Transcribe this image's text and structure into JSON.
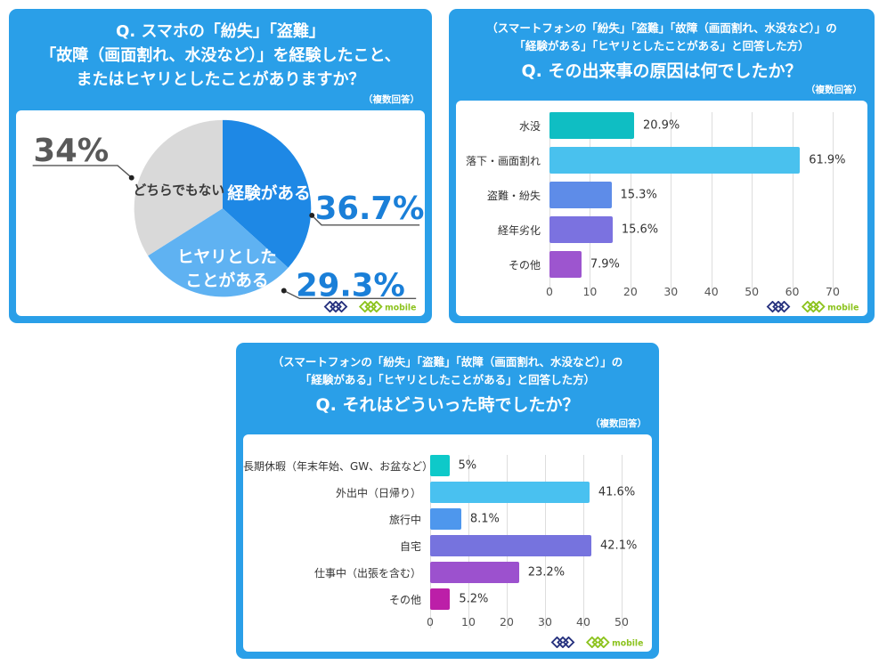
{
  "brand": {
    "mobile_text": "mobile",
    "navy": "#26317E",
    "green": "#8CC31E"
  },
  "panels": [
    {
      "title_line1": "Q. スマホの「紛失」「盗難」",
      "title_line2": "「故障（画面割れ、水没など）」を経験したこと、",
      "title_line3": "またはヒヤリとしたことがありますか？",
      "note": "（複数回答）",
      "pie": {
        "callout_blue": "#1A7FD8",
        "callout_gray": "#595959",
        "slices": [
          {
            "label": "経験がある",
            "value": 36.7,
            "display": "36.7%",
            "color": "#1E88E5"
          },
          {
            "label": "ヒヤリとしたことがある",
            "label_line1": "ヒヤリとした",
            "label_line2": "ことがある",
            "value": 29.3,
            "display": "29.3%",
            "color": "#5FB2F2"
          },
          {
            "label": "どちらでもない",
            "value": 34,
            "display": "34%",
            "color": "#D9D9D9"
          }
        ]
      }
    },
    {
      "subtitle_line1": "（スマートフォンの「紛失」「盗難」「故障（画面割れ、水没など）」の",
      "subtitle_line2": "「経験がある」「ヒヤリとしたことがある」と回答した方）",
      "question": "Q. その出来事の原因は何でしたか？",
      "note": "（複数回答）",
      "chart": {
        "axis_max": 70,
        "ticks": [
          0,
          10,
          20,
          30,
          40,
          50,
          60,
          70
        ],
        "bars": [
          {
            "label": "水没",
            "value": 20.9,
            "display": "20.9%",
            "color": "#0FBEC3"
          },
          {
            "label": "落下・画面割れ",
            "value": 61.9,
            "display": "61.9%",
            "color": "#49C1EE"
          },
          {
            "label": "盗難・紛失",
            "value": 15.3,
            "display": "15.3%",
            "color": "#5E8CE8"
          },
          {
            "label": "経年劣化",
            "value": 15.6,
            "display": "15.6%",
            "color": "#7B72E0"
          },
          {
            "label": "その他",
            "value": 7.9,
            "display": "7.9%",
            "color": "#9D55CF"
          }
        ]
      }
    },
    {
      "subtitle_line1": "（スマートフォンの「紛失」「盗難」「故障（画面割れ、水没など）」の",
      "subtitle_line2": "「経験がある」「ヒヤリとしたことがある」と回答した方）",
      "question": "Q. それはどういった時でしたか？",
      "note": "（複数回答）",
      "chart": {
        "axis_max": 50,
        "ticks": [
          0,
          10,
          20,
          30,
          40,
          50
        ],
        "bars": [
          {
            "label": "長期休暇（年末年始、GW、お盆など）",
            "value": 5,
            "display": "5%",
            "color": "#0EC9C9"
          },
          {
            "label": "外出中（日帰り）",
            "value": 41.6,
            "display": "41.6%",
            "color": "#49C1F0"
          },
          {
            "label": "旅行中",
            "value": 8.1,
            "display": "8.1%",
            "color": "#4E97ED"
          },
          {
            "label": "自宅",
            "value": 42.1,
            "display": "42.1%",
            "color": "#7673DE"
          },
          {
            "label": "仕事中（出張を含む）",
            "value": 23.2,
            "display": "23.2%",
            "color": "#9C51CE"
          },
          {
            "label": "その他",
            "value": 5.2,
            "display": "5.2%",
            "color": "#BC1FA8"
          }
        ]
      }
    }
  ],
  "chart_data": [
    {
      "type": "pie",
      "title": "Q. スマホの「紛失」「盗難」「故障（画面割れ、水没など）」を経験したこと、またはヒヤリとしたことがありますか？",
      "note": "（複数回答）",
      "labels": [
        "経験がある",
        "ヒヤリとしたことがある",
        "どちらでもない"
      ],
      "values": [
        36.7,
        29.3,
        34
      ],
      "value_labels": [
        "36.7%",
        "29.3%",
        "34%"
      ],
      "colors": [
        "#1E88E5",
        "#5FB2F2",
        "#D9D9D9"
      ],
      "start_angle": "12-o'clock, clockwise"
    },
    {
      "type": "bar",
      "orientation": "horizontal",
      "subtitle": "（スマートフォンの「紛失」「盗難」「故障（画面割れ、水没など）」の「経験がある」「ヒヤリとしたことがある」と回答した方）",
      "title": "Q. その出来事の原因は何でしたか？",
      "note": "（複数回答）",
      "categories": [
        "水没",
        "落下・画面割れ",
        "盗難・紛失",
        "経年劣化",
        "その他"
      ],
      "values": [
        20.9,
        61.9,
        15.3,
        15.6,
        7.9
      ],
      "value_labels": [
        "20.9%",
        "61.9%",
        "15.3%",
        "15.6%",
        "7.9%"
      ],
      "colors": [
        "#0FBEC3",
        "#49C1EE",
        "#5E8CE8",
        "#7B72E0",
        "#9D55CF"
      ],
      "xlim": [
        0,
        70
      ],
      "xticks": [
        0,
        10,
        20,
        30,
        40,
        50,
        60,
        70
      ],
      "grid": true
    },
    {
      "type": "bar",
      "orientation": "horizontal",
      "subtitle": "（スマートフォンの「紛失」「盗難」「故障（画面割れ、水没など）」の「経験がある」「ヒヤリとしたことがある」と回答した方）",
      "title": "Q. それはどういった時でしたか？",
      "note": "（複数回答）",
      "categories": [
        "長期休暇（年末年始、GW、お盆など）",
        "外出中（日帰り）",
        "旅行中",
        "自宅",
        "仕事中（出張を含む）",
        "その他"
      ],
      "values": [
        5,
        41.6,
        8.1,
        42.1,
        23.2,
        5.2
      ],
      "value_labels": [
        "5%",
        "41.6%",
        "8.1%",
        "42.1%",
        "23.2%",
        "5.2%"
      ],
      "colors": [
        "#0EC9C9",
        "#49C1F0",
        "#4E97ED",
        "#7673DE",
        "#9C51CE",
        "#BC1FA8"
      ],
      "xlim": [
        0,
        50
      ],
      "xticks": [
        0,
        10,
        20,
        30,
        40,
        50
      ],
      "grid": true
    }
  ]
}
